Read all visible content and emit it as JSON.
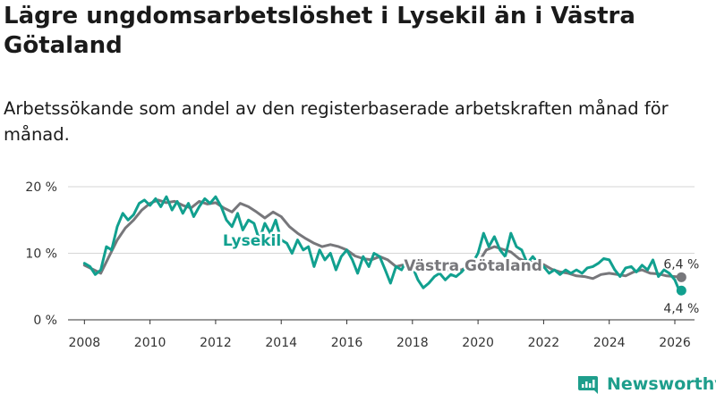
{
  "title": "Lägre ungdomsarbetslöshet i Lysekil än i Västra Götaland",
  "subtitle": "Arbetssökande som andel av den registerbaserade arbetskraften månad för månad.",
  "brand": "Newsworthy",
  "colors": {
    "lysekil": "#11a08f",
    "vastra": "#77777b",
    "grid": "#d6d6d6",
    "brand": "#1e9e8c"
  },
  "chart_data": {
    "type": "line",
    "title": "Lägre ungdomsarbetslöshet i Lysekil än i Västra Götaland",
    "xlabel": "",
    "ylabel": "",
    "xlim": [
      2007.5,
      2026.6
    ],
    "ylim": [
      0,
      20
    ],
    "y_ticks": [
      0,
      10,
      20
    ],
    "y_tick_labels": [
      "0 %",
      "10 %",
      "20 %"
    ],
    "x_ticks": [
      2008,
      2010,
      2012,
      2014,
      2016,
      2018,
      2020,
      2022,
      2024,
      2026
    ],
    "x_tick_labels": [
      "2008",
      "2010",
      "2012",
      "2014",
      "2016",
      "2018",
      "2020",
      "2022",
      "2024",
      "2026"
    ],
    "grid": true,
    "series": [
      {
        "name": "Västra Götaland",
        "label": "Västra Götaland",
        "end_label": "6,4 %",
        "end_value": 6.4,
        "x": [
          2008.0,
          2008.25,
          2008.5,
          2008.75,
          2009.0,
          2009.25,
          2009.5,
          2009.75,
          2010.0,
          2010.25,
          2010.5,
          2010.75,
          2011.0,
          2011.25,
          2011.5,
          2011.75,
          2012.0,
          2012.25,
          2012.5,
          2012.75,
          2013.0,
          2013.25,
          2013.5,
          2013.75,
          2014.0,
          2014.25,
          2014.5,
          2014.75,
          2015.0,
          2015.25,
          2015.5,
          2015.75,
          2016.0,
          2016.25,
          2016.5,
          2016.75,
          2017.0,
          2017.25,
          2017.5,
          2017.75,
          2018.0,
          2018.25,
          2018.5,
          2018.75,
          2019.0,
          2019.25,
          2019.5,
          2019.75,
          2020.0,
          2020.25,
          2020.5,
          2020.75,
          2021.0,
          2021.25,
          2021.5,
          2021.75,
          2022.0,
          2022.25,
          2022.5,
          2022.75,
          2023.0,
          2023.25,
          2023.5,
          2023.75,
          2024.0,
          2024.25,
          2024.5,
          2024.75,
          2025.0,
          2025.25,
          2025.5,
          2025.75,
          2026.0,
          2026.2
        ],
        "values": [
          8.2,
          7.6,
          7.0,
          9.5,
          12.0,
          13.8,
          15.0,
          16.5,
          17.5,
          18.0,
          17.6,
          17.8,
          17.2,
          16.8,
          17.8,
          17.4,
          17.6,
          16.8,
          16.2,
          17.5,
          17.0,
          16.2,
          15.3,
          16.2,
          15.5,
          14.0,
          13.0,
          12.2,
          11.5,
          11.0,
          11.3,
          11.0,
          10.5,
          9.6,
          9.2,
          9.0,
          9.5,
          9.0,
          8.0,
          8.3,
          8.6,
          8.2,
          7.9,
          7.6,
          7.5,
          7.6,
          7.5,
          8.2,
          8.5,
          10.5,
          11.0,
          10.6,
          10.2,
          9.2,
          8.7,
          8.6,
          8.3,
          7.6,
          7.2,
          7.0,
          6.6,
          6.5,
          6.2,
          6.8,
          7.0,
          6.8,
          6.6,
          7.2,
          7.5,
          7.0,
          6.9,
          6.6,
          6.5,
          6.4
        ]
      },
      {
        "name": "Lysekil",
        "label": "Lysekil",
        "end_label": "4,4 %",
        "end_value": 4.4,
        "x": [
          2008.0,
          2008.17,
          2008.33,
          2008.5,
          2008.67,
          2008.83,
          2009.0,
          2009.17,
          2009.33,
          2009.5,
          2009.67,
          2009.83,
          2010.0,
          2010.17,
          2010.33,
          2010.5,
          2010.67,
          2010.83,
          2011.0,
          2011.17,
          2011.33,
          2011.5,
          2011.67,
          2011.83,
          2012.0,
          2012.17,
          2012.33,
          2012.5,
          2012.67,
          2012.83,
          2013.0,
          2013.17,
          2013.33,
          2013.5,
          2013.67,
          2013.83,
          2014.0,
          2014.17,
          2014.33,
          2014.5,
          2014.67,
          2014.83,
          2015.0,
          2015.17,
          2015.33,
          2015.5,
          2015.67,
          2015.83,
          2016.0,
          2016.17,
          2016.33,
          2016.5,
          2016.67,
          2016.83,
          2017.0,
          2017.17,
          2017.33,
          2017.5,
          2017.67,
          2017.83,
          2018.0,
          2018.17,
          2018.33,
          2018.5,
          2018.67,
          2018.83,
          2019.0,
          2019.17,
          2019.33,
          2019.5,
          2019.67,
          2019.83,
          2020.0,
          2020.17,
          2020.33,
          2020.5,
          2020.67,
          2020.83,
          2021.0,
          2021.17,
          2021.33,
          2021.5,
          2021.67,
          2021.83,
          2022.0,
          2022.17,
          2022.33,
          2022.5,
          2022.67,
          2022.83,
          2023.0,
          2023.17,
          2023.33,
          2023.5,
          2023.67,
          2023.83,
          2024.0,
          2024.17,
          2024.33,
          2024.5,
          2024.67,
          2024.83,
          2025.0,
          2025.17,
          2025.33,
          2025.5,
          2025.67,
          2025.83,
          2026.0,
          2026.1,
          2026.2
        ],
        "values": [
          8.5,
          8.0,
          6.8,
          7.5,
          11.0,
          10.5,
          14.0,
          16.0,
          15.0,
          15.8,
          17.5,
          18.0,
          17.2,
          18.2,
          17.0,
          18.5,
          16.5,
          17.8,
          16.0,
          17.5,
          15.5,
          17.0,
          18.2,
          17.5,
          18.5,
          17.0,
          15.0,
          14.0,
          16.0,
          13.5,
          15.0,
          14.5,
          12.0,
          14.5,
          13.0,
          15.0,
          12.0,
          11.5,
          10.0,
          12.0,
          10.5,
          11.0,
          8.0,
          10.5,
          9.0,
          10.0,
          7.5,
          9.5,
          10.5,
          9.0,
          7.0,
          9.5,
          8.0,
          10.0,
          9.5,
          7.5,
          5.5,
          8.0,
          7.5,
          9.0,
          8.0,
          6.0,
          4.8,
          5.5,
          6.5,
          7.0,
          6.0,
          6.8,
          6.5,
          7.2,
          8.2,
          8.5,
          10.0,
          13.0,
          11.0,
          12.5,
          10.5,
          9.5,
          13.0,
          11.0,
          10.5,
          8.5,
          9.5,
          8.5,
          8.0,
          7.0,
          7.5,
          6.8,
          7.5,
          7.0,
          7.5,
          7.0,
          7.8,
          8.0,
          8.5,
          9.2,
          9.0,
          7.5,
          6.5,
          7.8,
          8.0,
          7.2,
          8.2,
          7.5,
          9.0,
          6.5,
          7.5,
          7.0,
          6.0,
          4.8,
          4.4
        ]
      }
    ]
  }
}
